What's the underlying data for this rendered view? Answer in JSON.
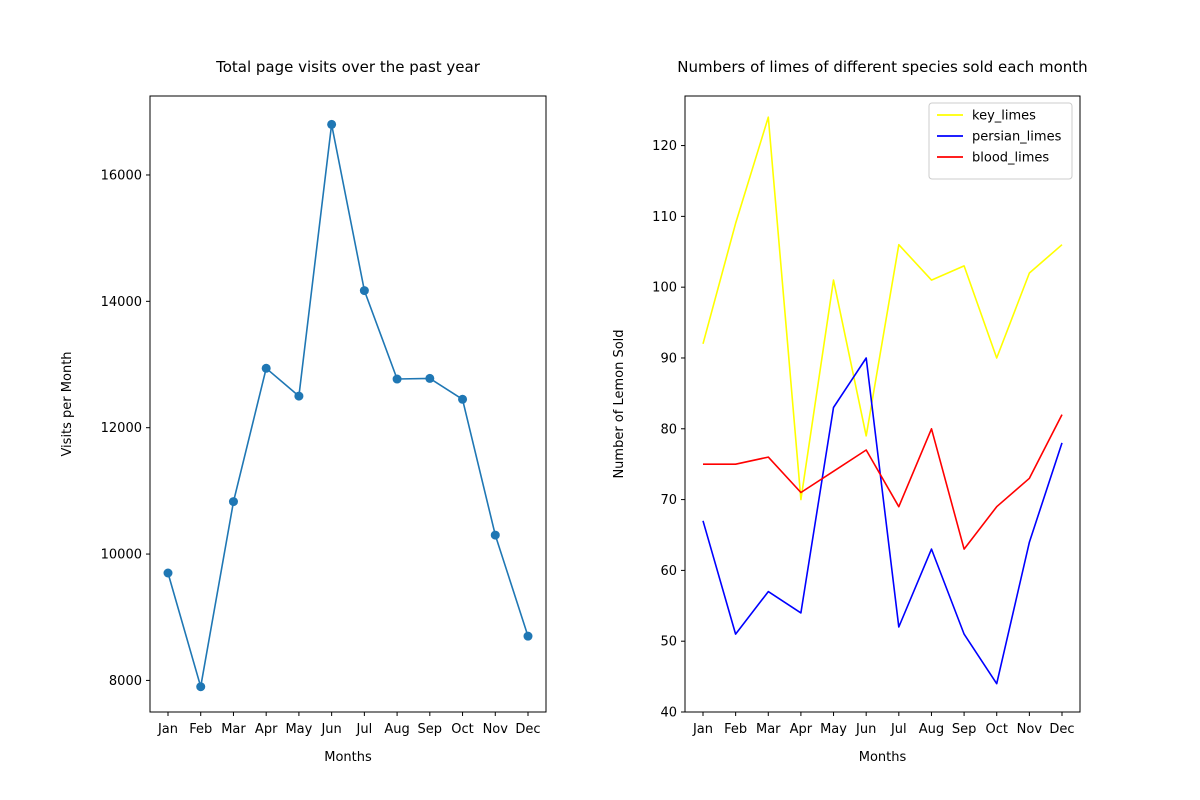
{
  "chart_data": [
    {
      "type": "line",
      "title": "Total page visits over the past year",
      "xlabel": "Months",
      "ylabel": "Visits per Month",
      "categories": [
        "Jan",
        "Feb",
        "Mar",
        "Apr",
        "May",
        "Jun",
        "Jul",
        "Aug",
        "Sep",
        "Oct",
        "Nov",
        "Dec"
      ],
      "ylim": [
        7500,
        17250
      ],
      "yticks": [
        8000,
        10000,
        12000,
        14000,
        16000
      ],
      "markers": true,
      "grid": false,
      "series": [
        {
          "color": "#1f77b4",
          "values": [
            9700,
            7900,
            10830,
            12940,
            12500,
            16800,
            14170,
            12770,
            12780,
            12450,
            10300,
            8700
          ]
        }
      ]
    },
    {
      "type": "line",
      "title": "Numbers of limes of different species sold each month",
      "xlabel": "Months",
      "ylabel": "Number of Lemon Sold",
      "categories": [
        "Jan",
        "Feb",
        "Mar",
        "Apr",
        "May",
        "Jun",
        "Jul",
        "Aug",
        "Sep",
        "Oct",
        "Nov",
        "Dec"
      ],
      "ylim": [
        40,
        127
      ],
      "yticks": [
        40,
        50,
        60,
        70,
        80,
        90,
        100,
        110,
        120
      ],
      "legend": "top-right",
      "grid": false,
      "series": [
        {
          "name": "key_limes",
          "color": "#ffff00",
          "values": [
            92,
            109,
            124,
            70,
            101,
            79,
            106,
            101,
            103,
            90,
            102,
            106
          ]
        },
        {
          "name": "persian_limes",
          "color": "#0000ff",
          "values": [
            67,
            51,
            57,
            54,
            83,
            90,
            52,
            63,
            51,
            44,
            64,
            78
          ]
        },
        {
          "name": "blood_limes",
          "color": "#ff0000",
          "values": [
            75,
            75,
            76,
            71,
            74,
            77,
            69,
            80,
            63,
            69,
            73,
            82
          ]
        }
      ]
    }
  ]
}
